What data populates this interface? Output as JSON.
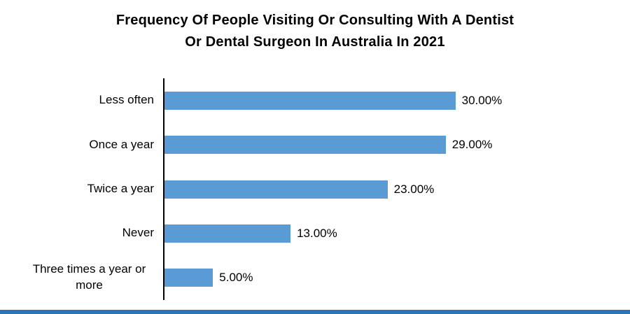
{
  "title": {
    "line1": "Frequency Of People Visiting Or Consulting With A Dentist",
    "line2": "Or Dental Surgeon In Australia In 2021"
  },
  "chart_data": {
    "type": "bar",
    "orientation": "horizontal",
    "title": "Frequency Of People Visiting Or Consulting With A Dentist Or Dental Surgeon In Australia In 2021",
    "categories": [
      "Less often",
      "Once a year",
      "Twice a year",
      "Never",
      "Three times a year or more"
    ],
    "values": [
      30,
      29,
      23,
      13,
      5
    ],
    "labels": [
      "30.00%",
      "29.00%",
      "23.00%",
      "13.00%",
      "5.00%"
    ],
    "xlabel": "",
    "ylabel": "",
    "xlim": [
      0,
      48
    ],
    "grid": false,
    "legend": "none",
    "bar_color": "#5B9BD5",
    "axis_color": "#000000"
  },
  "footer": {
    "accent_color": "#2E75B6"
  }
}
